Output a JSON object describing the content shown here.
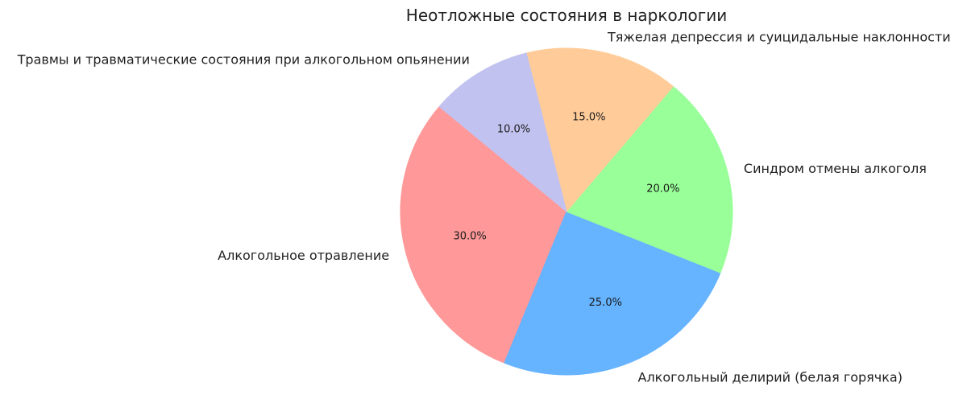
{
  "chart_data": {
    "type": "pie",
    "title": "Неотложные состояния в наркологии",
    "start_angle_deg": 140,
    "direction": "counterclockwise",
    "slices": [
      {
        "label": "Алкогольное отравление",
        "value": 30.0,
        "pct_label": "30.0%",
        "color": "#ff9999"
      },
      {
        "label": "Алкогольный делирий (белая горячка)",
        "value": 25.0,
        "pct_label": "25.0%",
        "color": "#66b3ff"
      },
      {
        "label": "Синдром отмены алкоголя",
        "value": 20.0,
        "pct_label": "20.0%",
        "color": "#99ff99"
      },
      {
        "label": "Тяжелая депрессия и суицидальные наклонности",
        "value": 15.0,
        "pct_label": "15.0%",
        "color": "#ffcc99"
      },
      {
        "label": "Травмы и травматические состояния при алкогольном опьянении",
        "value": 10.0,
        "pct_label": "10.0%",
        "color": "#c2c2f0"
      }
    ]
  }
}
